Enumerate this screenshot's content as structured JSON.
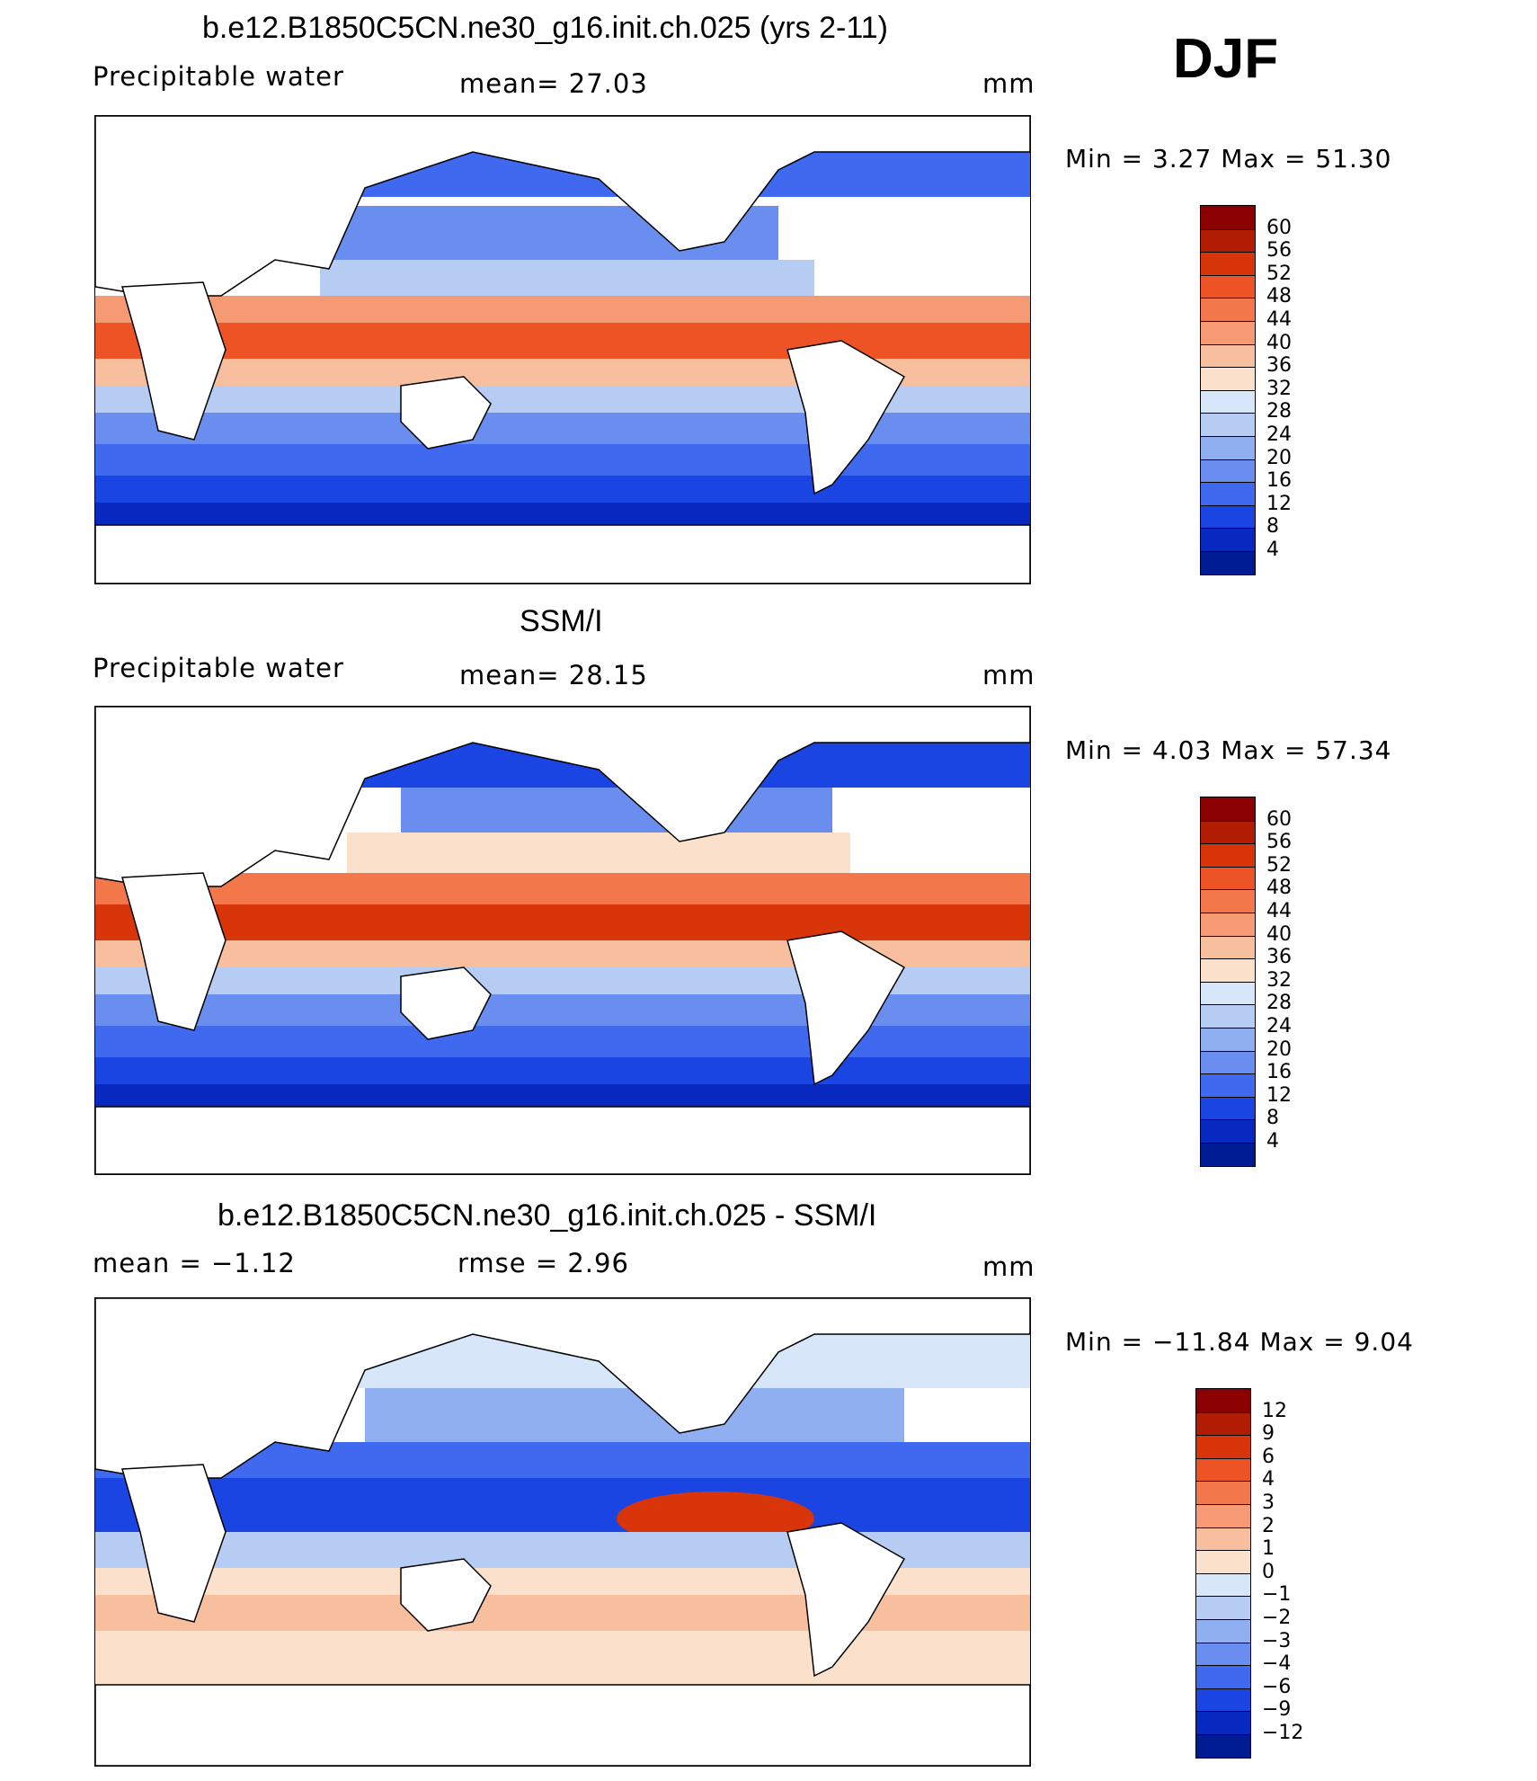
{
  "season": "DJF",
  "panels": [
    {
      "title": "b.e12.B1850C5CN.ne30_g16.init.ch.025 (yrs 2-11)",
      "left_label": "Precipitable  water",
      "mid_label": "mean=   27.03",
      "units": "mm",
      "minmax": "Min  =     3.27  Max  =    51.30",
      "colorbar_labels": [
        "60",
        "56",
        "52",
        "48",
        "44",
        "40",
        "36",
        "32",
        "28",
        "24",
        "20",
        "16",
        "12",
        "8",
        "4"
      ]
    },
    {
      "title": "SSM/I",
      "left_label": "Precipitable  water",
      "mid_label": "mean=   28.15",
      "units": "mm",
      "minmax": "Min  =     4.03  Max  =    57.34",
      "colorbar_labels": [
        "60",
        "56",
        "52",
        "48",
        "44",
        "40",
        "36",
        "32",
        "28",
        "24",
        "20",
        "16",
        "12",
        "8",
        "4"
      ]
    },
    {
      "title": "b.e12.B1850C5CN.ne30_g16.init.ch.025 - SSM/I",
      "left_label": "mean  =    −1.12",
      "mid_label": "rmse  =     2.96",
      "units": "mm",
      "minmax": "Min  =  −11.84  Max  =     9.04",
      "colorbar_labels": [
        "12",
        "9",
        "6",
        "4",
        "3",
        "2",
        "1",
        "0",
        "−1",
        "−2",
        "−3",
        "−4",
        "−6",
        "−9",
        "−12"
      ]
    }
  ],
  "palette": [
    "#8b0000",
    "#b01d02",
    "#d8350a",
    "#ee5325",
    "#f2784b",
    "#f59a72",
    "#f8bf9e",
    "#fbe1cc",
    "#d7e6f8",
    "#b6ccf2",
    "#90aff0",
    "#6a8ef0",
    "#3f6af0",
    "#1a45e3",
    "#0829c0",
    "#001c92"
  ],
  "chart_data": [
    {
      "type": "heatmap",
      "title": "b.e12.B1850C5CN.ne30_g16.init.ch.025 (yrs 2-11)",
      "variable": "Precipitable water",
      "units": "mm",
      "mean": 27.03,
      "min": 3.27,
      "max": 51.3,
      "contour_levels": [
        4,
        8,
        12,
        16,
        20,
        24,
        28,
        32,
        36,
        40,
        44,
        48,
        52,
        56,
        60
      ],
      "grid": false,
      "legend": "right"
    },
    {
      "type": "heatmap",
      "title": "SSM/I",
      "variable": "Precipitable water",
      "units": "mm",
      "mean": 28.15,
      "min": 4.03,
      "max": 57.34,
      "contour_levels": [
        4,
        8,
        12,
        16,
        20,
        24,
        28,
        32,
        36,
        40,
        44,
        48,
        52,
        56,
        60
      ],
      "grid": false,
      "legend": "right"
    },
    {
      "type": "heatmap",
      "title": "b.e12.B1850C5CN.ne30_g16.init.ch.025 - SSM/I",
      "units": "mm",
      "mean": -1.12,
      "rmse": 2.96,
      "min": -11.84,
      "max": 9.04,
      "contour_levels": [
        -12,
        -9,
        -6,
        -4,
        -3,
        -2,
        -1,
        0,
        1,
        2,
        3,
        4,
        6,
        9,
        12
      ],
      "grid": false,
      "legend": "right"
    }
  ]
}
